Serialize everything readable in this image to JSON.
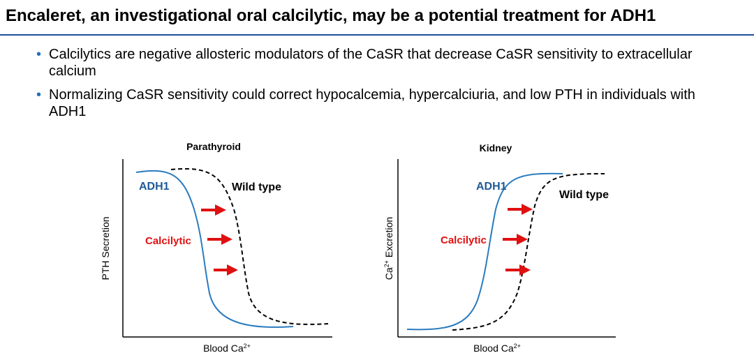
{
  "title": "Encaleret, an investigational oral calcilytic, may be a potential treatment for ADH1",
  "bullets": [
    "Calcilytics are negative allosteric modulators of the CaSR that decrease CaSR sensitivity to extracellular calcium",
    "Normalizing CaSR sensitivity could correct hypocalcemia, hypercalciuria, and low PTH in individuals with ADH1"
  ],
  "bullet_icon": "bullet-dot",
  "colors": {
    "accent": "#1f6fb8",
    "adh1_curve": "#2a7bbf",
    "arrow": "#e01010",
    "rule": "#1f4e9a"
  },
  "charts": {
    "parathyroid": {
      "title": "Parathyroid",
      "ylabel": "PTH Secretion",
      "xlabel_base": "Blood Ca",
      "xlabel_sup": "2+",
      "adh1_label": "ADH1",
      "wildtype_label": "Wild type",
      "calcilytic_label": "Calcilytic"
    },
    "kidney": {
      "title": "Kidney",
      "ylabel_base": "Ca",
      "ylabel_sup": "2+",
      "ylabel_rest": " Excretion",
      "xlabel_base": "Blood Ca",
      "xlabel_sup": "2+",
      "adh1_label": "ADH1",
      "wildtype_label": "Wild type",
      "calcilytic_label": "Calcilytic"
    }
  }
}
